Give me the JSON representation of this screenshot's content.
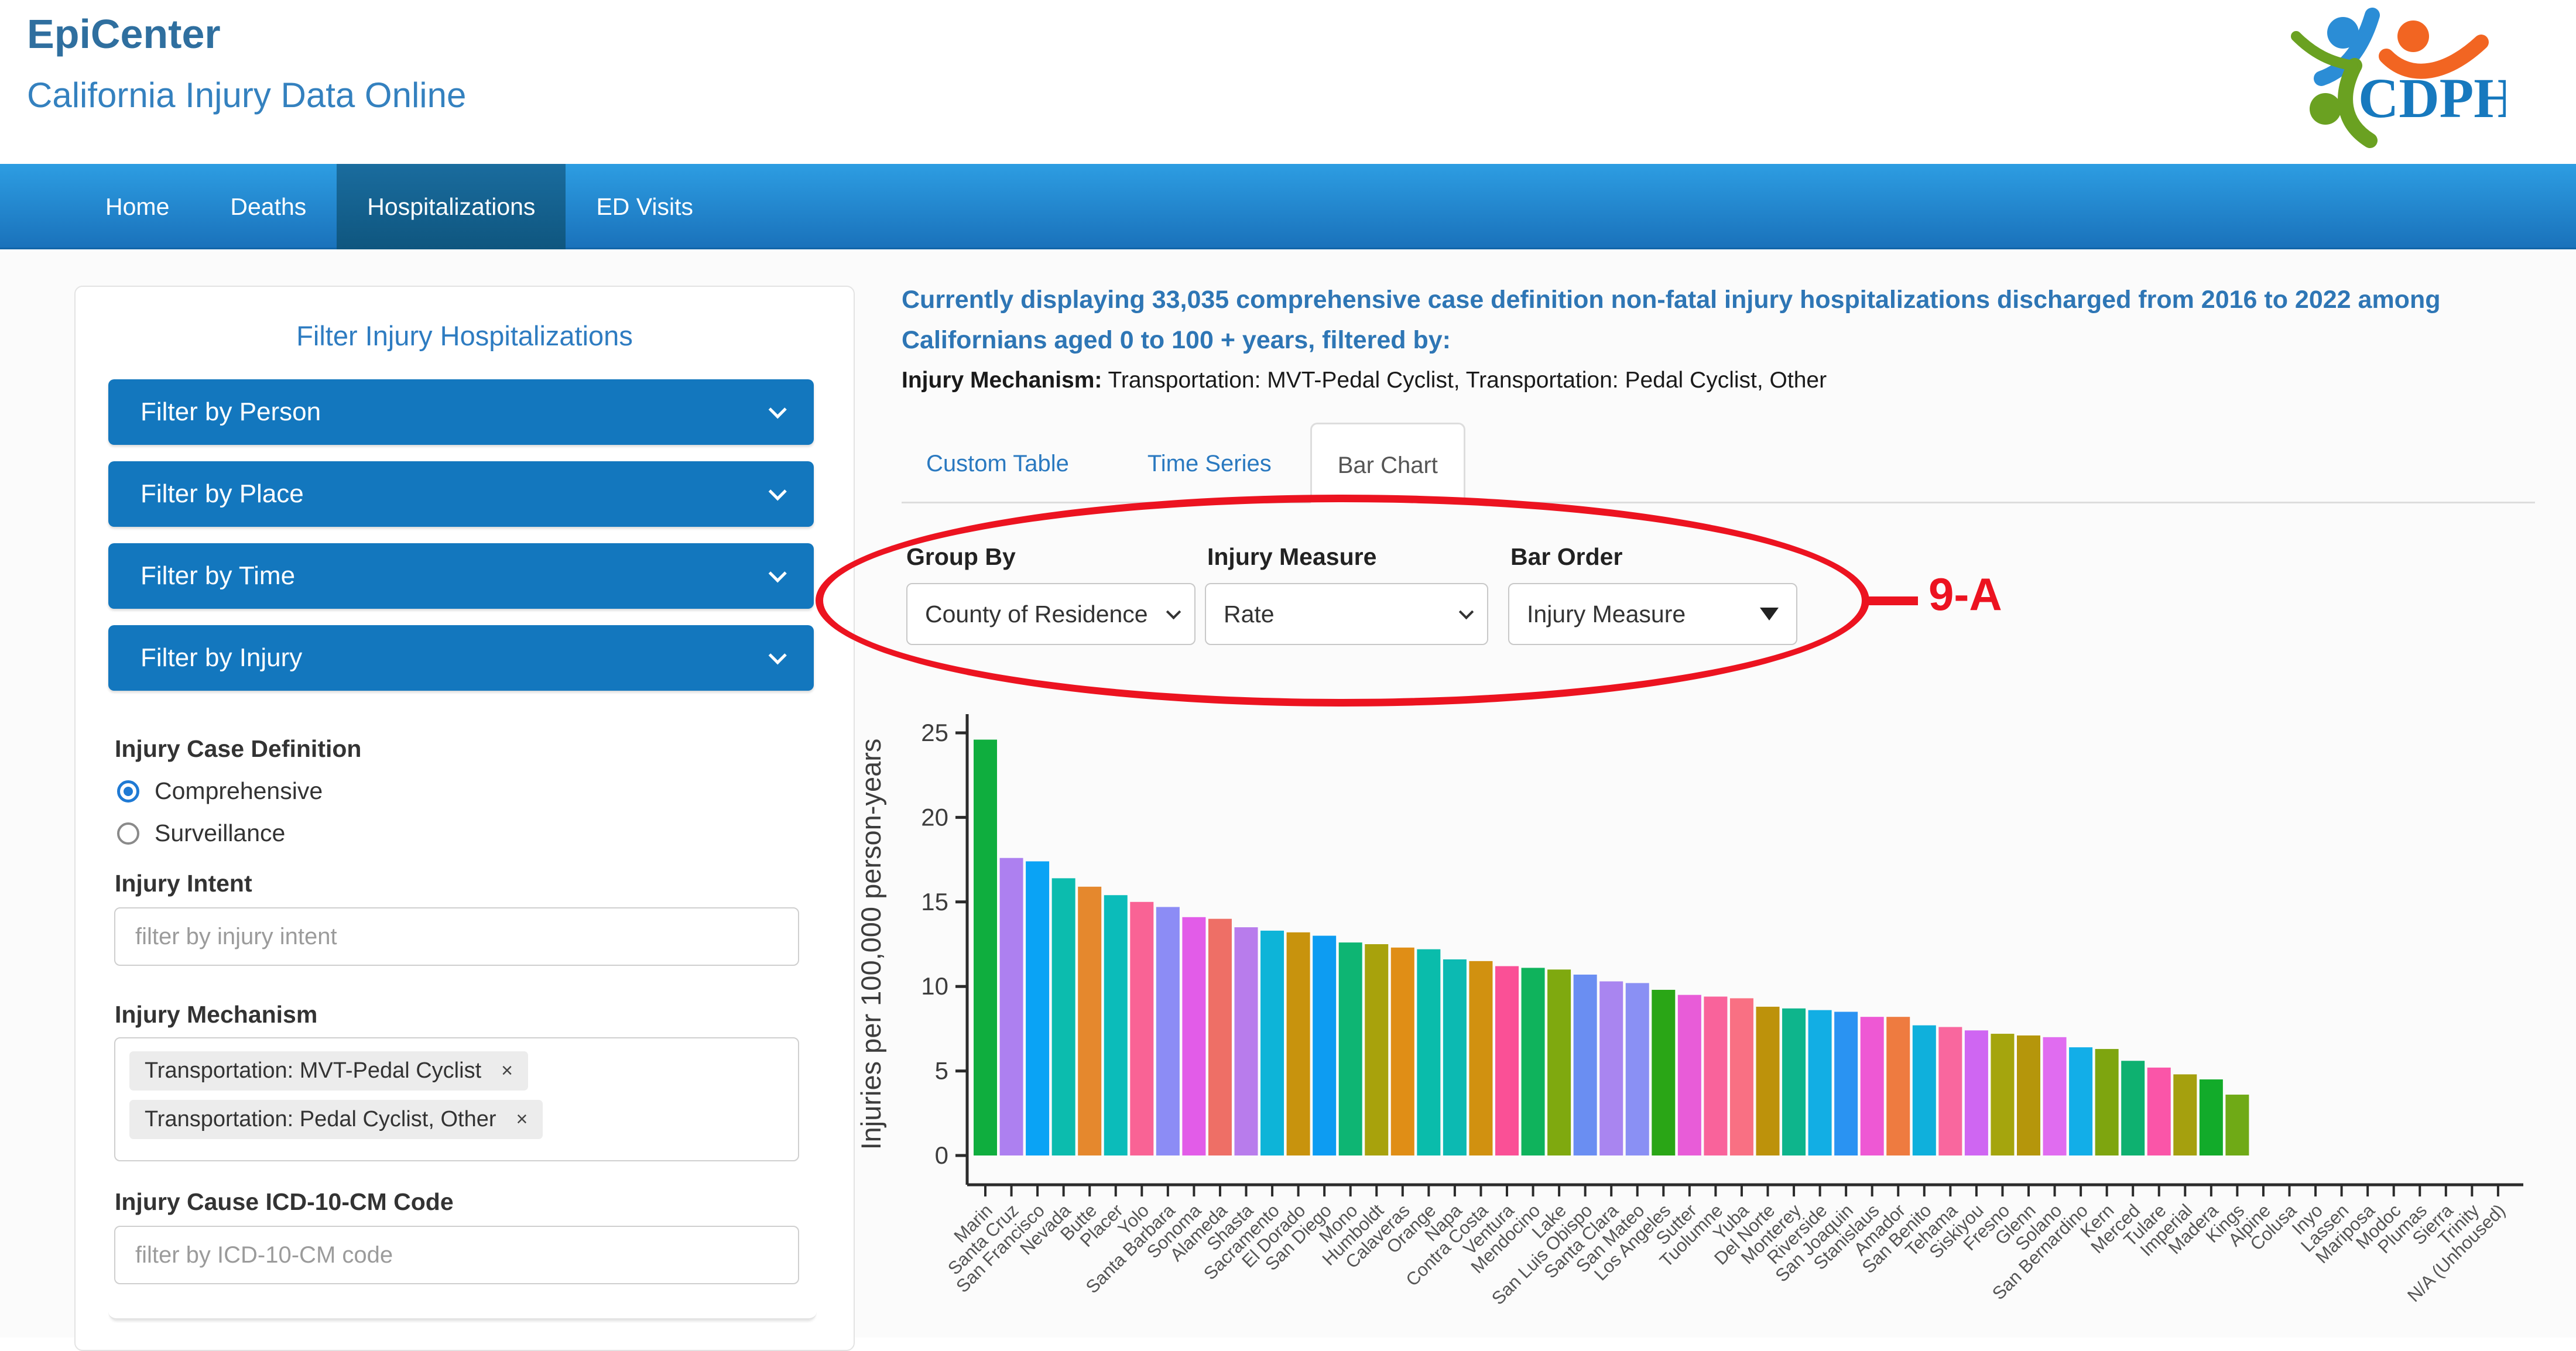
{
  "header": {
    "title": "EpiCenter",
    "subtitle": "California Injury Data Online"
  },
  "logo": {
    "text": "CDPH",
    "blue": "#2b8dd6",
    "orange": "#f26522",
    "green": "#6aa121",
    "text_color": "#1779be"
  },
  "nav": {
    "items": [
      {
        "label": "Home",
        "active": false
      },
      {
        "label": "Deaths",
        "active": false
      },
      {
        "label": "Hospitalizations",
        "active": true
      },
      {
        "label": "ED Visits",
        "active": false
      }
    ]
  },
  "sidebar": {
    "title": "Filter Injury Hospitalizations",
    "accordions": [
      {
        "label": "Filter by Person"
      },
      {
        "label": "Filter by Place"
      },
      {
        "label": "Filter by Time"
      },
      {
        "label": "Filter by Injury"
      }
    ],
    "case_definition": {
      "label": "Injury Case Definition",
      "options": [
        {
          "label": "Comprehensive",
          "selected": true
        },
        {
          "label": "Surveillance",
          "selected": false
        }
      ]
    },
    "injury_intent": {
      "label": "Injury Intent",
      "placeholder": "filter by injury intent",
      "value": ""
    },
    "injury_mechanism": {
      "label": "Injury Mechanism",
      "tags": [
        "Transportation: MVT-Pedal Cyclist",
        "Transportation: Pedal Cyclist, Other"
      ]
    },
    "injury_cause": {
      "label": "Injury Cause ICD-10-CM Code",
      "placeholder": "filter by ICD-10-CM code",
      "value": ""
    }
  },
  "main": {
    "summary": "Currently displaying 33,035 comprehensive case definition non-fatal injury hospitalizations discharged from 2016 to 2022 among Californians aged 0 to 100 + years, filtered by:",
    "filter_label": "Injury Mechanism:",
    "filter_value": " Transportation: MVT-Pedal Cyclist, Transportation: Pedal Cyclist, Other",
    "tabs": [
      {
        "label": "Custom Table",
        "active": false
      },
      {
        "label": "Time Series",
        "active": false
      },
      {
        "label": "Bar Chart",
        "active": true
      }
    ],
    "controls": [
      {
        "label": "Group By",
        "value": "County of Residence"
      },
      {
        "label": "Injury Measure",
        "value": "Rate"
      },
      {
        "label": "Bar Order",
        "value": "Injury Measure"
      }
    ],
    "annotation": {
      "label": "9-A",
      "color": "#ec1320"
    }
  },
  "icons": {
    "remove": "×"
  },
  "chart_data": {
    "type": "bar",
    "title": "",
    "xlabel": "",
    "ylabel": "Injuries per 100,000 person-years",
    "ylim": [
      0,
      25
    ],
    "yticks": [
      0,
      5,
      10,
      15,
      20,
      25
    ],
    "grid": false,
    "legend": "none",
    "categories": [
      "Marin",
      "Santa Cruz",
      "San Francisco",
      "Nevada",
      "Butte",
      "Placer",
      "Yolo",
      "Santa Barbara",
      "Sonoma",
      "Alameda",
      "Shasta",
      "Sacramento",
      "El Dorado",
      "San Diego",
      "Mono",
      "Humboldt",
      "Calaveras",
      "Orange",
      "Napa",
      "Contra Costa",
      "Ventura",
      "Mendocino",
      "Lake",
      "San Luis Obispo",
      "Santa Clara",
      "San Mateo",
      "Los Angeles",
      "Sutter",
      "Tuolumne",
      "Yuba",
      "Del Norte",
      "Monterey",
      "Riverside",
      "San Joaquin",
      "Stanislaus",
      "Amador",
      "San Benito",
      "Tehama",
      "Siskiyou",
      "Fresno",
      "Glenn",
      "Solano",
      "San Bernardino",
      "Kern",
      "Merced",
      "Tulare",
      "Imperial",
      "Madera",
      "Kings",
      "Alpine",
      "Colusa",
      "Inyo",
      "Lassen",
      "Mariposa",
      "Modoc",
      "Plumas",
      "Sierra",
      "Trinity",
      "N/A (Unhoused)"
    ],
    "values": [
      24.6,
      17.6,
      17.4,
      16.4,
      15.9,
      15.4,
      15.0,
      14.7,
      14.1,
      14.0,
      13.5,
      13.3,
      13.2,
      13.0,
      12.6,
      12.5,
      12.3,
      12.2,
      11.6,
      11.5,
      11.2,
      11.1,
      11.0,
      10.7,
      10.3,
      10.2,
      9.8,
      9.5,
      9.4,
      9.3,
      8.8,
      8.7,
      8.6,
      8.5,
      8.2,
      8.2,
      7.7,
      7.6,
      7.4,
      7.2,
      7.1,
      7.0,
      6.4,
      6.3,
      5.6,
      5.2,
      4.8,
      4.5,
      3.6,
      null,
      null,
      null,
      null,
      null,
      null,
      null,
      null,
      null,
      null
    ],
    "colors": [
      "#0fae3e",
      "#ad80f0",
      "#0aa3f5",
      "#0cbcae",
      "#e5882d",
      "#0bbcba",
      "#f96395",
      "#8c8cf5",
      "#e25ce8",
      "#ee6f66",
      "#b87cec",
      "#0db4d8",
      "#c8930d",
      "#0d9cf2",
      "#0eb573",
      "#a8a20c",
      "#e08e16",
      "#0abcab",
      "#0cbab2",
      "#d19110",
      "#fa5096",
      "#0fb35c",
      "#7fa90f",
      "#6a8ef2",
      "#a985f0",
      "#8a90f4",
      "#2aa616",
      "#e85cd8",
      "#f9639b",
      "#f97083",
      "#bd920b",
      "#0eb58c",
      "#12aee4",
      "#2a93f2",
      "#ee58d4",
      "#ee7b40",
      "#0fb0dc",
      "#f9679e",
      "#cf66f2",
      "#a5a50d",
      "#b5960b",
      "#e06cf0",
      "#12aee8",
      "#7ea50f",
      "#0eb170",
      "#fa55a8",
      "#a5a00e",
      "#12ab2a",
      "#6faa16",
      null,
      null,
      null,
      null,
      null,
      null,
      null,
      null,
      null,
      null
    ]
  }
}
